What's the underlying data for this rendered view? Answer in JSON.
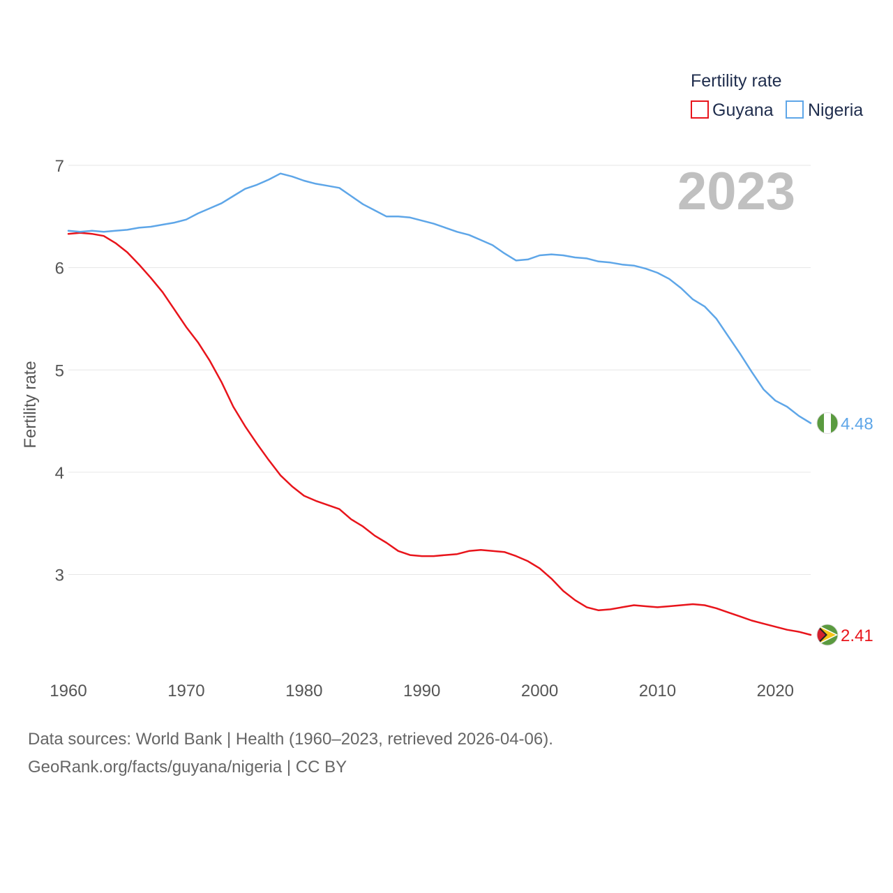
{
  "chart_data": {
    "type": "line",
    "title": "",
    "xlabel": "",
    "ylabel": "Fertility rate",
    "xlim": [
      1960,
      2023
    ],
    "ylim": [
      2.1,
      7.0
    ],
    "xticks": [
      "1960",
      "1970",
      "1980",
      "1990",
      "2000",
      "2010",
      "2020"
    ],
    "yticks": [
      "3",
      "4",
      "5",
      "6",
      "7"
    ],
    "year_label": "2023",
    "legend": {
      "title": "Fertility rate",
      "position": "top-right"
    },
    "x": [
      1960,
      1961,
      1962,
      1963,
      1964,
      1965,
      1966,
      1967,
      1968,
      1969,
      1970,
      1971,
      1972,
      1973,
      1974,
      1975,
      1976,
      1977,
      1978,
      1979,
      1980,
      1981,
      1982,
      1983,
      1984,
      1985,
      1986,
      1987,
      1988,
      1989,
      1990,
      1991,
      1992,
      1993,
      1994,
      1995,
      1996,
      1997,
      1998,
      1999,
      2000,
      2001,
      2002,
      2003,
      2004,
      2005,
      2006,
      2007,
      2008,
      2009,
      2010,
      2011,
      2012,
      2013,
      2014,
      2015,
      2016,
      2017,
      2018,
      2019,
      2020,
      2021,
      2022,
      2023
    ],
    "series": [
      {
        "name": "Guyana",
        "color": "#e8141b",
        "end_label": "2.41",
        "flag": "guyana-flag",
        "values": [
          6.33,
          6.34,
          6.33,
          6.31,
          6.24,
          6.15,
          6.03,
          5.9,
          5.76,
          5.59,
          5.42,
          5.27,
          5.09,
          4.88,
          4.64,
          4.45,
          4.28,
          4.12,
          3.97,
          3.86,
          3.77,
          3.72,
          3.68,
          3.64,
          3.54,
          3.47,
          3.38,
          3.31,
          3.23,
          3.19,
          3.18,
          3.18,
          3.19,
          3.2,
          3.23,
          3.24,
          3.23,
          3.22,
          3.18,
          3.13,
          3.06,
          2.96,
          2.84,
          2.75,
          2.68,
          2.65,
          2.66,
          2.68,
          2.7,
          2.69,
          2.68,
          2.69,
          2.7,
          2.71,
          2.7,
          2.67,
          2.63,
          2.59,
          2.55,
          2.52,
          2.49,
          2.46,
          2.44,
          2.41
        ]
      },
      {
        "name": "Nigeria",
        "color": "#5ea6e8",
        "end_label": "4.48",
        "flag": "nigeria-flag",
        "values": [
          6.36,
          6.35,
          6.36,
          6.35,
          6.36,
          6.37,
          6.39,
          6.4,
          6.42,
          6.44,
          6.47,
          6.53,
          6.58,
          6.63,
          6.7,
          6.77,
          6.81,
          6.86,
          6.92,
          6.89,
          6.85,
          6.82,
          6.8,
          6.78,
          6.7,
          6.62,
          6.56,
          6.5,
          6.5,
          6.49,
          6.46,
          6.43,
          6.39,
          6.35,
          6.32,
          6.27,
          6.22,
          6.14,
          6.07,
          6.08,
          6.12,
          6.13,
          6.12,
          6.1,
          6.09,
          6.06,
          6.05,
          6.03,
          6.02,
          5.99,
          5.95,
          5.89,
          5.8,
          5.69,
          5.62,
          5.5,
          5.33,
          5.16,
          4.98,
          4.81,
          4.7,
          4.64,
          4.55,
          4.48
        ]
      }
    ]
  },
  "footer": {
    "line1": "Data sources: World Bank | Health (1960–2023, retrieved 2026-04-06).",
    "line2": "GeoRank.org/facts/guyana/nigeria | CC BY"
  }
}
